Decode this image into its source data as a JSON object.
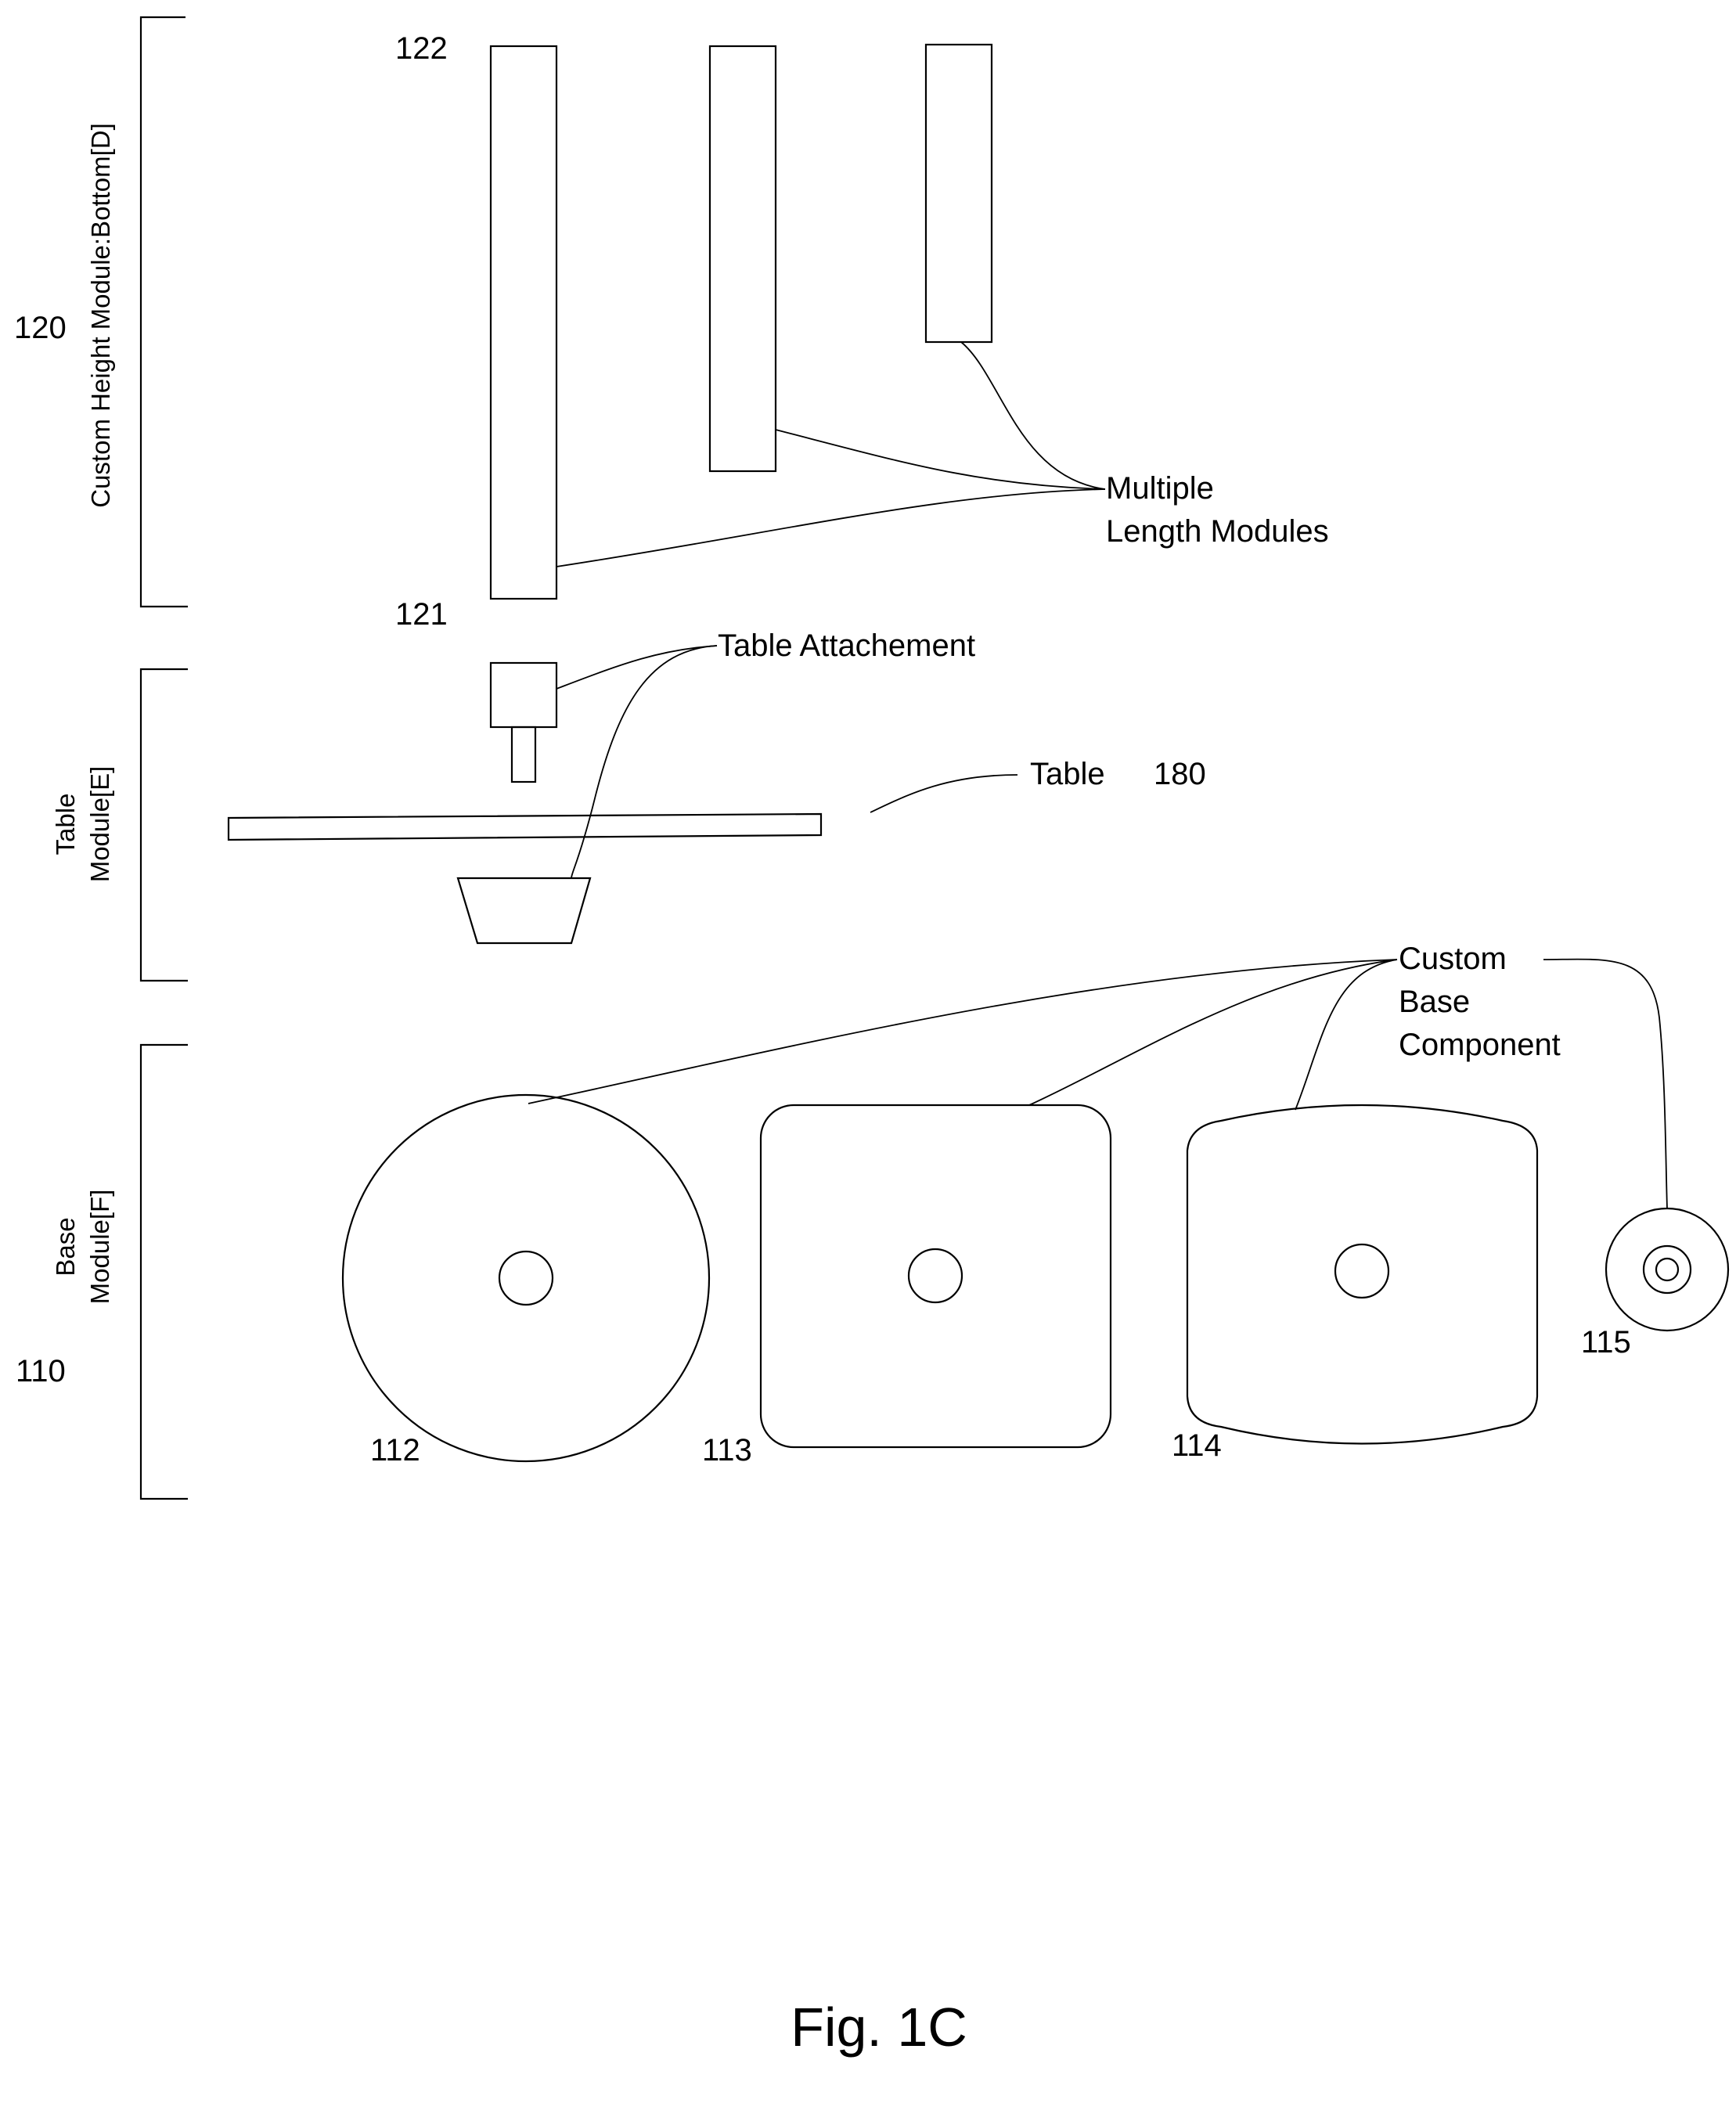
{
  "sections": {
    "height": {
      "number": "120",
      "label": "Custom Height Module:Bottom[D]"
    },
    "table": {
      "line1": "Table",
      "line2": "Module[E]"
    },
    "base": {
      "number": "110",
      "line1": "Base",
      "line2": "Module[F]"
    }
  },
  "refs": {
    "r122": "122",
    "r121": "121",
    "r112": "112",
    "r113": "113",
    "r114": "114",
    "r115": "115"
  },
  "callouts": {
    "multiple_line1": "Multiple",
    "multiple_line2": "Length Modules",
    "table_attachment": "Table Attachement",
    "table_word": "Table",
    "table_number": "180",
    "custom_line1": "Custom",
    "custom_line2": "Base",
    "custom_line3": "Component"
  },
  "caption": "Fig. 1C"
}
